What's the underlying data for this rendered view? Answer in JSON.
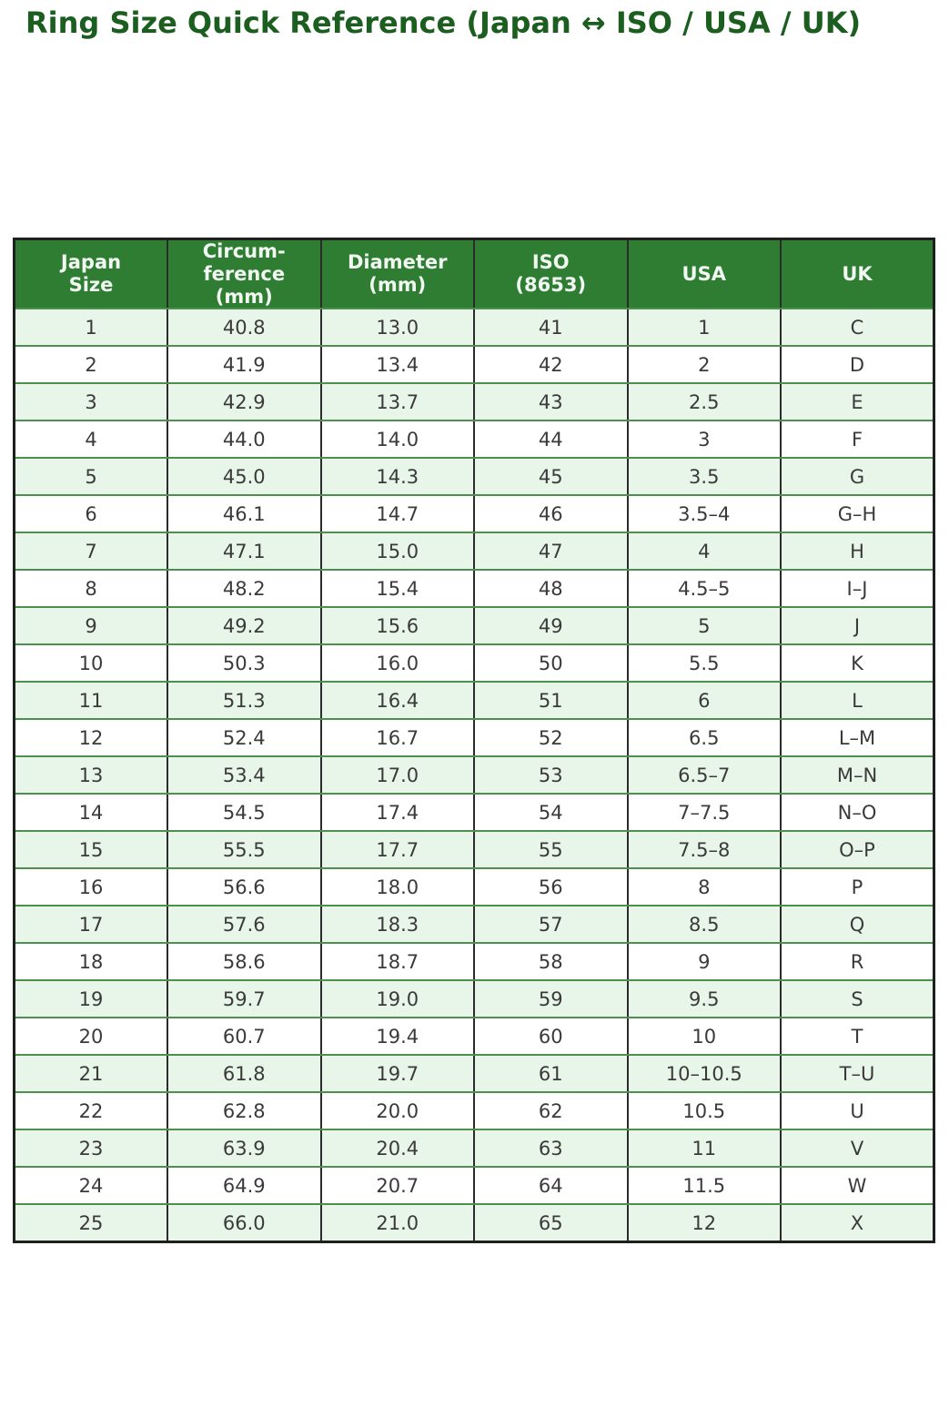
{
  "title": {
    "text": "Ring Size Quick Reference (Japan ↔ ISO / USA / UK)"
  },
  "colors": {
    "title_color": "#1b5e20",
    "header_bg": "#2e7d32",
    "header_text": "#f2f8f2",
    "row_alt_bg": "#e8f5e9",
    "row_bg": "#ffffff",
    "h_border": "#4d8f4f",
    "v_border": "#2b2b2b",
    "outer_border": "#1f1f1f",
    "cell_text": "#3a3a3a"
  },
  "table": {
    "columns": [
      {
        "label": "Japan\nSize"
      },
      {
        "label": "Circum-\nference\n(mm)"
      },
      {
        "label": "Diameter\n(mm)"
      },
      {
        "label": "ISO\n(8653)"
      },
      {
        "label": "USA"
      },
      {
        "label": "UK"
      }
    ]
  },
  "chart_data": {
    "type": "table",
    "title": "Ring Size Quick Reference (Japan ↔ ISO / USA / UK)",
    "columns": [
      "Japan Size",
      "Circumference (mm)",
      "Diameter (mm)",
      "ISO (8653)",
      "USA",
      "UK"
    ],
    "rows": [
      [
        "1",
        "40.8",
        "13.0",
        "41",
        "1",
        "C"
      ],
      [
        "2",
        "41.9",
        "13.4",
        "42",
        "2",
        "D"
      ],
      [
        "3",
        "42.9",
        "13.7",
        "43",
        "2.5",
        "E"
      ],
      [
        "4",
        "44.0",
        "14.0",
        "44",
        "3",
        "F"
      ],
      [
        "5",
        "45.0",
        "14.3",
        "45",
        "3.5",
        "G"
      ],
      [
        "6",
        "46.1",
        "14.7",
        "46",
        "3.5–4",
        "G–H"
      ],
      [
        "7",
        "47.1",
        "15.0",
        "47",
        "4",
        "H"
      ],
      [
        "8",
        "48.2",
        "15.4",
        "48",
        "4.5–5",
        "I–J"
      ],
      [
        "9",
        "49.2",
        "15.6",
        "49",
        "5",
        "J"
      ],
      [
        "10",
        "50.3",
        "16.0",
        "50",
        "5.5",
        "K"
      ],
      [
        "11",
        "51.3",
        "16.4",
        "51",
        "6",
        "L"
      ],
      [
        "12",
        "52.4",
        "16.7",
        "52",
        "6.5",
        "L–M"
      ],
      [
        "13",
        "53.4",
        "17.0",
        "53",
        "6.5–7",
        "M–N"
      ],
      [
        "14",
        "54.5",
        "17.4",
        "54",
        "7–7.5",
        "N–O"
      ],
      [
        "15",
        "55.5",
        "17.7",
        "55",
        "7.5–8",
        "O–P"
      ],
      [
        "16",
        "56.6",
        "18.0",
        "56",
        "8",
        "P"
      ],
      [
        "17",
        "57.6",
        "18.3",
        "57",
        "8.5",
        "Q"
      ],
      [
        "18",
        "58.6",
        "18.7",
        "58",
        "9",
        "R"
      ],
      [
        "19",
        "59.7",
        "19.0",
        "59",
        "9.5",
        "S"
      ],
      [
        "20",
        "60.7",
        "19.4",
        "60",
        "10",
        "T"
      ],
      [
        "21",
        "61.8",
        "19.7",
        "61",
        "10–10.5",
        "T–U"
      ],
      [
        "22",
        "62.8",
        "20.0",
        "62",
        "10.5",
        "U"
      ],
      [
        "23",
        "63.9",
        "20.4",
        "63",
        "11",
        "V"
      ],
      [
        "24",
        "64.9",
        "20.7",
        "64",
        "11.5",
        "W"
      ],
      [
        "25",
        "66.0",
        "21.0",
        "65",
        "12",
        "X"
      ]
    ]
  }
}
